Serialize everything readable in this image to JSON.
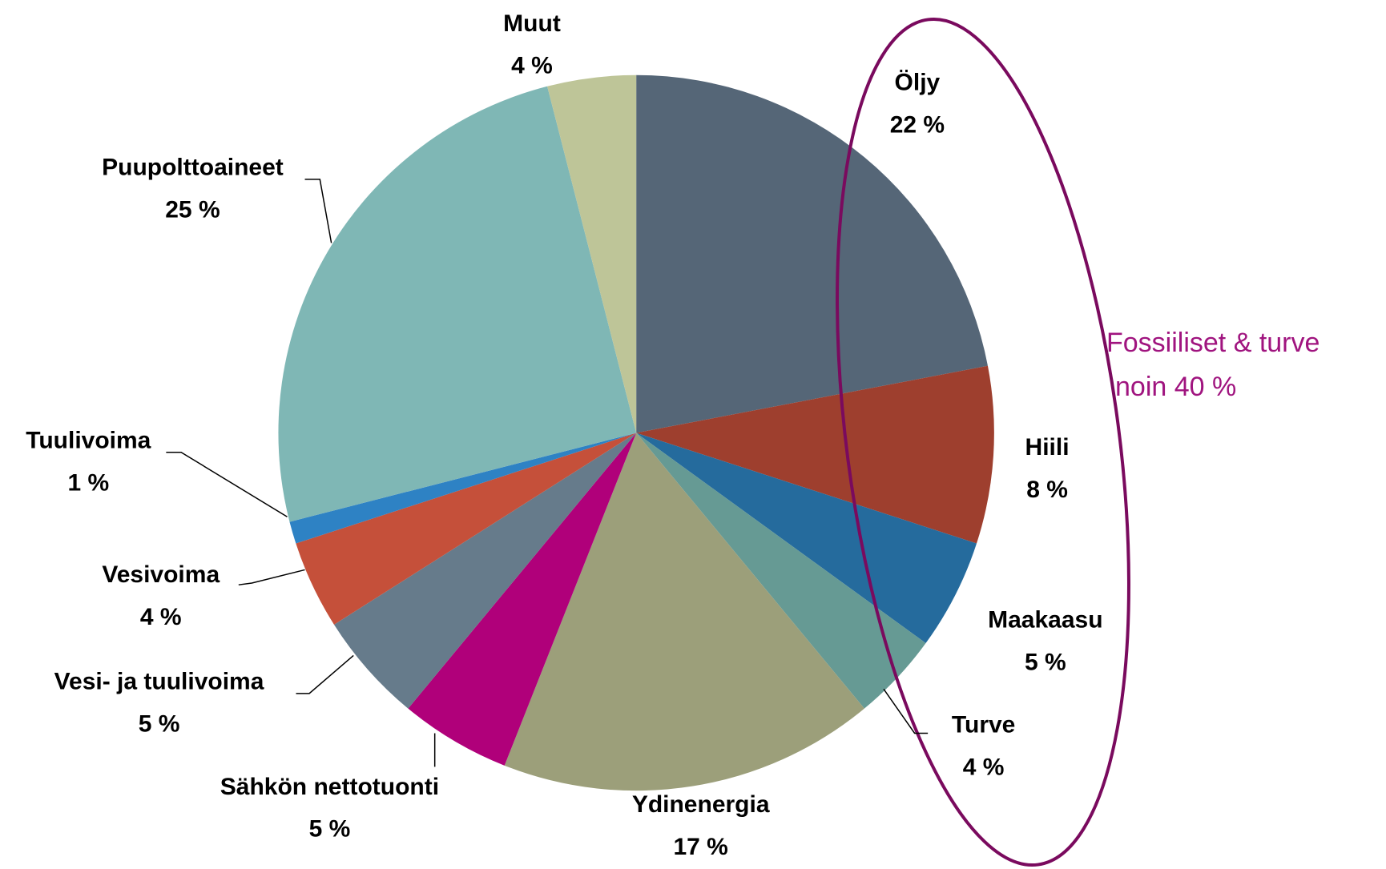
{
  "chart_data": {
    "type": "pie",
    "categories": [
      "Öljy",
      "Hiili",
      "Maakaasu",
      "Turve",
      "Ydinenergia",
      "Sähkön nettotuonti",
      "Vesi- ja tuulivoima",
      "Vesivoima",
      "Tuulivoima",
      "Puupolttoaineet",
      "Muut"
    ],
    "values": [
      22,
      8,
      5,
      4,
      17,
      5,
      5,
      4,
      1,
      25,
      4
    ],
    "value_labels": [
      "22 %",
      "8 %",
      "5 %",
      "4 %",
      "17 %",
      "5 %",
      "5 %",
      "4 %",
      "1 %",
      "25 %",
      "4 %"
    ],
    "colors": [
      "#556677",
      "#9e3f2e",
      "#256b9d",
      "#669a94",
      "#9c9f7a",
      "#b0007a",
      "#667b8b",
      "#c5503a",
      "#2e82c4",
      "#7fb7b5",
      "#bec598"
    ],
    "annotations": [
      "Fossiiliset & turve",
      "noin 40 %"
    ]
  }
}
